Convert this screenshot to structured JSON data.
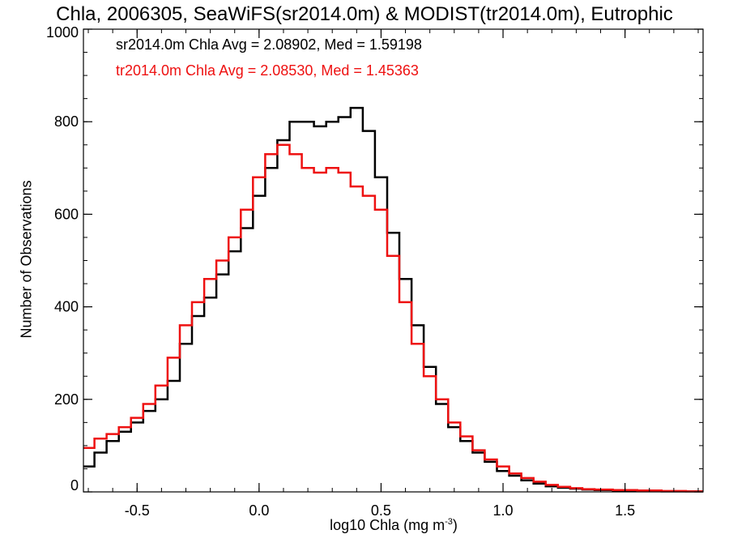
{
  "chart_data": {
    "type": "line",
    "step": true,
    "title": "Chla, 2006305, SeaWiFS(sr2014.0m) & MODIST(tr2014.0m), Eutrophic",
    "xlabel": "log10 Chla (mg m",
    "xlabel_sup": "-3",
    "xlabel_end": ")",
    "ylabel": "Number of Observations",
    "xlim": [
      -0.72,
      1.82
    ],
    "ylim": [
      0,
      1000
    ],
    "xticks": [
      -0.5,
      0.0,
      0.5,
      1.0,
      1.5
    ],
    "xtick_labels": [
      "-0.5",
      "0.0",
      "0.5",
      "1.0",
      "1.5"
    ],
    "yticks": [
      0,
      200,
      400,
      600,
      800,
      1000
    ],
    "ytick_labels": [
      "0",
      "200",
      "400",
      "600",
      "800",
      "1000"
    ],
    "grid": false,
    "annotations": [
      "sr2014.0m Chla Avg = 2.08902, Med = 1.59198",
      "tr2014.0m Chla Avg = 2.08530, Med = 1.45363"
    ],
    "series": [
      {
        "color": "#000000",
        "x": [
          -0.7,
          -0.65,
          -0.6,
          -0.55,
          -0.5,
          -0.45,
          -0.4,
          -0.35,
          -0.3,
          -0.25,
          -0.2,
          -0.15,
          -0.1,
          -0.05,
          0.0,
          0.05,
          0.1,
          0.15,
          0.2,
          0.25,
          0.3,
          0.35,
          0.4,
          0.45,
          0.5,
          0.55,
          0.6,
          0.65,
          0.7,
          0.75,
          0.8,
          0.85,
          0.9,
          0.95,
          1.0,
          1.05,
          1.1,
          1.15,
          1.2,
          1.25,
          1.3,
          1.35,
          1.4,
          1.5,
          1.6,
          1.7,
          1.8
        ],
        "y": [
          55,
          85,
          110,
          130,
          150,
          175,
          200,
          240,
          320,
          380,
          420,
          470,
          520,
          570,
          640,
          700,
          760,
          800,
          800,
          790,
          800,
          810,
          830,
          780,
          680,
          560,
          460,
          360,
          270,
          190,
          140,
          110,
          85,
          65,
          45,
          35,
          25,
          18,
          12,
          9,
          7,
          5,
          4,
          3,
          2,
          1,
          1
        ]
      },
      {
        "color": "#ee1111",
        "x": [
          -0.7,
          -0.65,
          -0.6,
          -0.55,
          -0.5,
          -0.45,
          -0.4,
          -0.35,
          -0.3,
          -0.25,
          -0.2,
          -0.15,
          -0.1,
          -0.05,
          0.0,
          0.05,
          0.1,
          0.15,
          0.2,
          0.25,
          0.3,
          0.35,
          0.4,
          0.45,
          0.5,
          0.55,
          0.6,
          0.65,
          0.7,
          0.75,
          0.8,
          0.85,
          0.9,
          0.95,
          1.0,
          1.05,
          1.1,
          1.15,
          1.2,
          1.25,
          1.3,
          1.35,
          1.4,
          1.5,
          1.6,
          1.7,
          1.8
        ],
        "y": [
          95,
          115,
          125,
          140,
          160,
          190,
          230,
          290,
          360,
          410,
          460,
          500,
          550,
          610,
          680,
          730,
          750,
          730,
          700,
          690,
          700,
          690,
          660,
          640,
          610,
          510,
          410,
          320,
          250,
          200,
          150,
          120,
          90,
          70,
          55,
          40,
          30,
          22,
          15,
          11,
          8,
          6,
          5,
          4,
          3,
          2,
          1
        ]
      }
    ]
  }
}
